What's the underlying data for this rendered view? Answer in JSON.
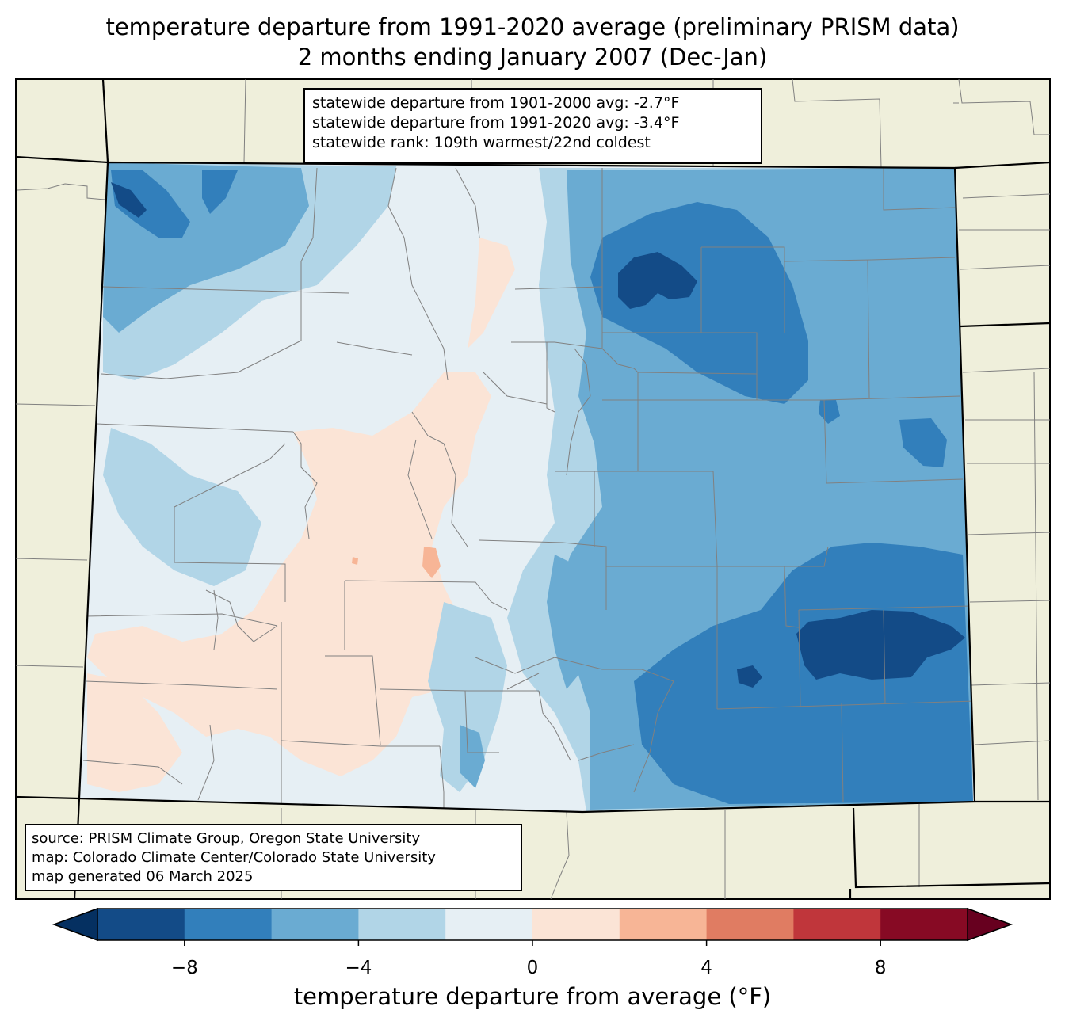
{
  "title": {
    "line1": "temperature departure from 1991-2020 average (preliminary PRISM data)",
    "line2": "2 months ending January 2007 (Dec-Jan)"
  },
  "stats": {
    "line1": "statewide departure from 1901-2000 avg: -2.7°F",
    "line2": "statewide departure from 1991-2020 avg: -3.4°F",
    "line3": "statewide rank: 109th warmest/22nd coldest"
  },
  "source": {
    "line1": "source: PRISM Climate Group, Oregon State University",
    "line2": "map: Colorado Climate Center/Colorado State University",
    "line3": "map generated 06 March 2025"
  },
  "colorbar": {
    "label": "temperature departure from average (°F)",
    "bounds": [
      -10,
      -8,
      -6,
      -4,
      -2,
      0,
      2,
      4,
      6,
      8,
      10
    ],
    "ticks": [
      "−8",
      "−4",
      "0",
      "4",
      "8"
    ],
    "tick_values": [
      -8,
      -4,
      0,
      4,
      8
    ],
    "colors": [
      "#134b87",
      "#327fbb",
      "#6aabd2",
      "#b1d5e7",
      "#e6eff4",
      "#fbe4d6",
      "#f7b596",
      "#e07c62",
      "#c0363b",
      "#870a24"
    ],
    "under_color": "#053061",
    "over_color": "#67001f"
  },
  "map_colors": {
    "background": "#efefdb",
    "state_border": "#000000",
    "county_border": "#808080"
  }
}
